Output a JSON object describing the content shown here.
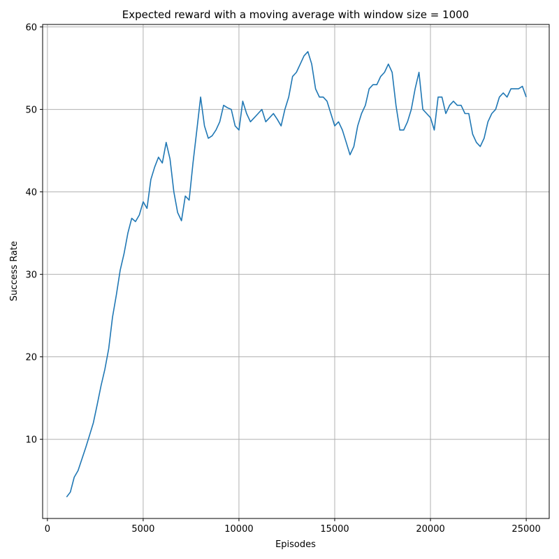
{
  "chart_data": {
    "type": "line",
    "title": "Expected reward with a moving average with window size = 1000",
    "xlabel": "Episodes",
    "ylabel": "Success Rate",
    "xlim": [
      -250,
      26200
    ],
    "ylim": [
      0.4,
      60.3
    ],
    "xticks": [
      0,
      5000,
      10000,
      15000,
      20000,
      25000
    ],
    "yticks": [
      10,
      20,
      30,
      40,
      50,
      60
    ],
    "grid": true,
    "line_color": "#1f77b4",
    "series": [
      {
        "x": [
          1000,
          1200,
          1400,
          1600,
          1800,
          2000,
          2200,
          2400,
          2600,
          2800,
          3000,
          3200,
          3400,
          3600,
          3800,
          4000,
          4200,
          4400,
          4600,
          4800,
          5000,
          5200,
          5400,
          5600,
          5800,
          6000,
          6200,
          6400,
          6600,
          6800,
          7000,
          7200,
          7400,
          7600,
          7800,
          8000,
          8200,
          8400,
          8600,
          8800,
          9000,
          9200,
          9400,
          9600,
          9800,
          10000,
          10200,
          10400,
          10600,
          10800,
          11000,
          11200,
          11400,
          11600,
          11800,
          12000,
          12200,
          12400,
          12600,
          12800,
          13000,
          13200,
          13400,
          13600,
          13800,
          14000,
          14200,
          14400,
          14600,
          14800,
          15000,
          15200,
          15400,
          15600,
          15800,
          16000,
          16200,
          16400,
          16600,
          16800,
          17000,
          17200,
          17400,
          17600,
          17800,
          18000,
          18200,
          18400,
          18600,
          18800,
          19000,
          19200,
          19400,
          19600,
          19800,
          20000,
          20200,
          20400,
          20600,
          20800,
          21000,
          21200,
          21400,
          21600,
          21800,
          22000,
          22200,
          22400,
          22600,
          22800,
          23000,
          23200,
          23400,
          23600,
          23800,
          24000,
          24200,
          24400,
          24600,
          24800,
          25000
        ],
        "y": [
          3.0,
          3.6,
          5.4,
          6.2,
          7.6,
          9.0,
          10.5,
          12.0,
          14.2,
          16.5,
          18.5,
          21.0,
          24.8,
          27.5,
          30.5,
          32.5,
          35.0,
          36.8,
          36.4,
          37.2,
          38.8,
          38.0,
          41.5,
          43.0,
          44.2,
          43.5,
          46.0,
          44.0,
          40.0,
          37.5,
          36.5,
          39.5,
          39.0,
          43.5,
          47.5,
          51.5,
          48.0,
          46.5,
          46.8,
          47.5,
          48.5,
          50.5,
          50.2,
          50.0,
          48.0,
          47.5,
          51.0,
          49.5,
          48.5,
          49.0,
          49.5,
          50.0,
          48.5,
          49.0,
          49.5,
          48.8,
          48.0,
          50.0,
          51.5,
          54.0,
          54.5,
          55.5,
          56.5,
          57.0,
          55.5,
          52.5,
          51.5,
          51.5,
          51.0,
          49.5,
          48.0,
          48.5,
          47.5,
          46.0,
          44.5,
          45.5,
          48.0,
          49.5,
          50.5,
          52.5,
          53.0,
          53.0,
          54.0,
          54.5,
          55.5,
          54.5,
          50.5,
          47.5,
          47.5,
          48.5,
          50.0,
          52.5,
          54.5,
          50.0,
          49.5,
          49.0,
          47.5,
          51.5,
          51.5,
          49.5,
          50.5,
          51.0,
          50.5,
          50.5,
          49.5,
          49.5,
          47.0,
          46.0,
          45.5,
          46.5,
          48.5,
          49.5,
          50.0,
          51.5,
          52.0,
          51.5,
          52.5,
          52.5,
          52.5,
          52.8,
          51.5
        ]
      }
    ]
  }
}
